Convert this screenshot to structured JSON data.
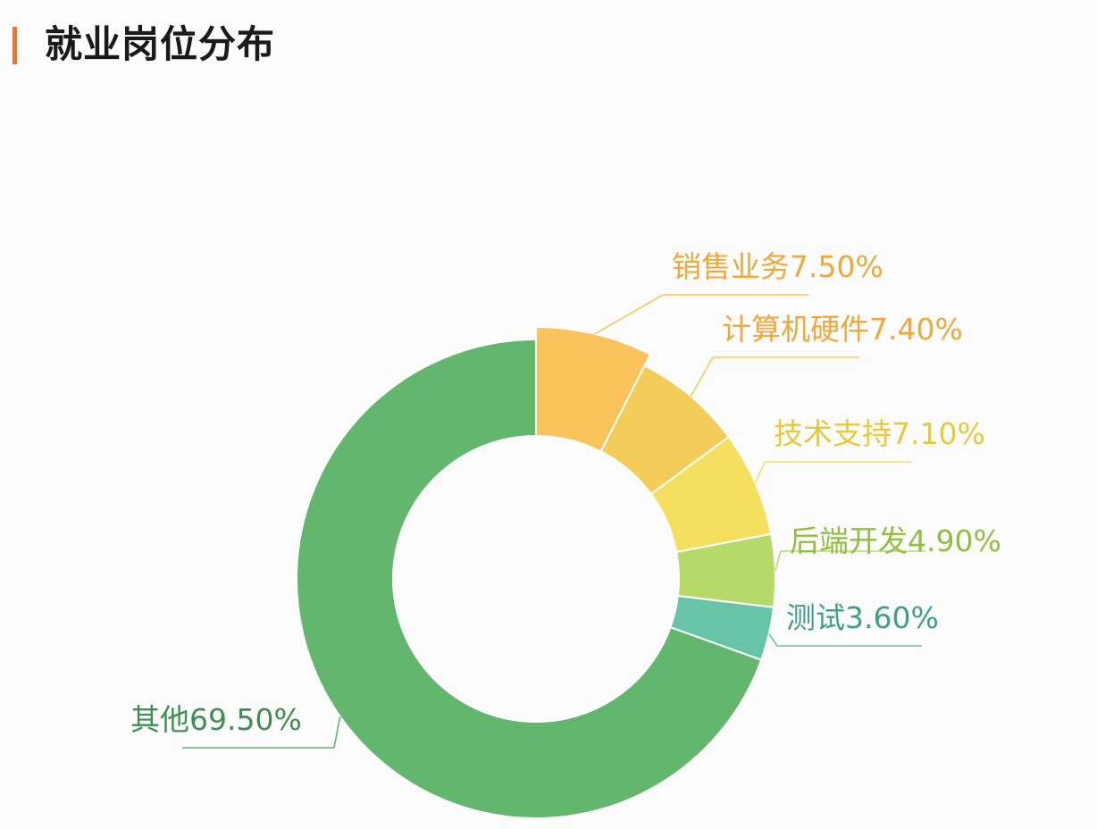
{
  "title": "就业岗位分布",
  "colors": {
    "title_accent": "#e8772e"
  },
  "chart_data": {
    "type": "pie",
    "title": "就业岗位分布",
    "donut": true,
    "highlighted_slice": "销售业务",
    "slices": [
      {
        "name": "销售业务",
        "value": 7.5,
        "label": "销售业务7.50%",
        "color": "#fbc35c"
      },
      {
        "name": "计算机硬件",
        "value": 7.4,
        "label": "计算机硬件7.40%",
        "color": "#f4cc5a"
      },
      {
        "name": "技术支持",
        "value": 7.1,
        "label": "技术支持7.10%",
        "color": "#f5df5e"
      },
      {
        "name": "后端开发",
        "value": 4.9,
        "label": "后端开发4.90%",
        "color": "#b6d96a"
      },
      {
        "name": "测试",
        "value": 3.6,
        "label": "测试3.60%",
        "color": "#67c4a7"
      },
      {
        "name": "其他",
        "value": 69.5,
        "label": "其他69.50%",
        "color": "#62b66d"
      }
    ]
  }
}
